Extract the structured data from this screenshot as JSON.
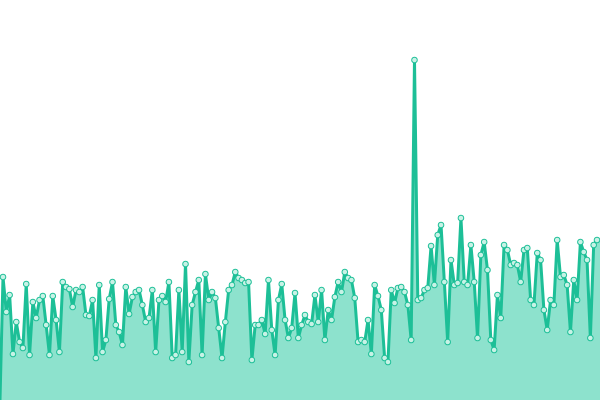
{
  "chart_data": {
    "type": "area",
    "values": [
      123,
      88,
      105,
      46,
      78,
      58,
      52,
      116,
      45,
      98,
      82,
      100,
      104,
      75,
      45,
      104,
      80,
      48,
      118,
      113,
      111,
      93,
      110,
      108,
      113,
      85,
      84,
      100,
      42,
      115,
      48,
      60,
      101,
      118,
      75,
      68,
      55,
      113,
      86,
      103,
      108,
      110,
      95,
      78,
      82,
      110,
      48,
      100,
      104,
      98,
      118,
      42,
      45,
      110,
      48,
      136,
      38,
      95,
      108,
      120,
      45,
      126,
      100,
      108,
      102,
      72,
      42,
      78,
      110,
      115,
      128,
      122,
      120,
      117,
      118,
      40,
      75,
      75,
      80,
      66,
      120,
      70,
      45,
      100,
      116,
      80,
      62,
      72,
      107,
      62,
      75,
      85,
      78,
      76,
      105,
      78,
      110,
      60,
      90,
      80,
      103,
      118,
      108,
      128,
      122,
      120,
      102,
      58,
      60,
      58,
      80,
      46,
      115,
      104,
      90,
      42,
      38,
      110,
      97,
      112,
      113,
      108,
      95,
      60,
      340,
      100,
      102,
      110,
      112,
      154,
      115,
      165,
      175,
      118,
      58,
      140,
      115,
      117,
      182,
      118,
      115,
      155,
      118,
      62,
      145,
      158,
      130,
      60,
      50,
      105,
      82,
      155,
      150,
      135,
      137,
      135,
      118,
      150,
      152,
      100,
      95,
      147,
      140,
      90,
      70,
      100,
      95,
      160,
      123,
      125,
      115,
      68,
      120,
      100,
      158,
      148,
      140,
      62,
      155,
      160
    ],
    "color": "#1dbf97",
    "fill": "#8de2cd",
    "ylim": [
      0,
      400
    ]
  }
}
